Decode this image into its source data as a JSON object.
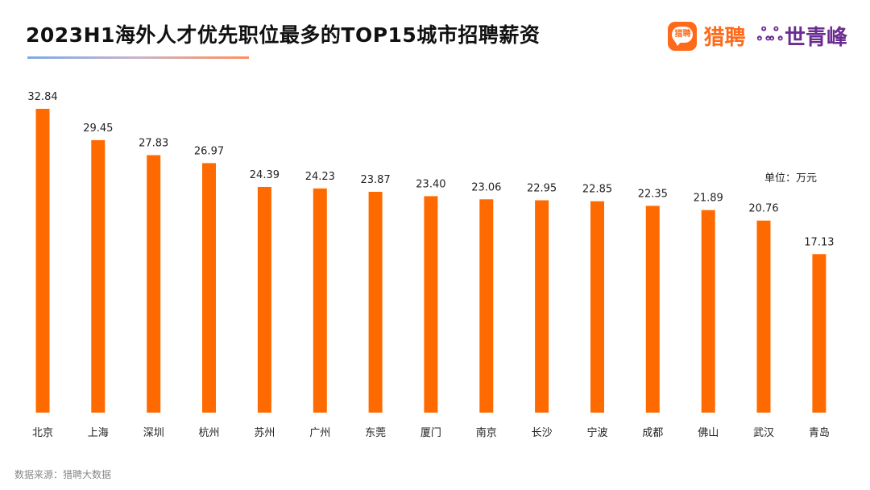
{
  "header": {
    "title": "2023H1海外人才优先职位最多的TOP15城市招聘薪资"
  },
  "logos": {
    "liepin_icon_text": "猎聘",
    "liepin_text": "猎聘",
    "sqf_icon": "sqf-logo-icon",
    "sqf_text": "世青峰"
  },
  "unit_label": "单位：万元",
  "source_label": "数据来源：猎聘大数据",
  "colors": {
    "bar": "#ff6a00",
    "title": "#111111"
  },
  "chart_data": {
    "type": "bar",
    "title": "2023H1海外人才优先职位最多的TOP15城市招聘薪资",
    "categories": [
      "北京",
      "上海",
      "深圳",
      "杭州",
      "苏州",
      "广州",
      "东莞",
      "厦门",
      "南京",
      "长沙",
      "宁波",
      "成都",
      "佛山",
      "武汉",
      "青岛"
    ],
    "values": [
      32.84,
      29.45,
      27.83,
      26.97,
      24.39,
      24.23,
      23.87,
      23.4,
      23.06,
      22.95,
      22.85,
      22.35,
      21.89,
      20.76,
      17.13
    ],
    "value_labels": [
      "32.84",
      "29.45",
      "27.83",
      "26.97",
      "24.39",
      "24.23",
      "23.87",
      "23.40",
      "23.06",
      "22.95",
      "22.85",
      "22.35",
      "21.89",
      "20.76",
      "17.13"
    ],
    "ylabel": "",
    "xlabel": "",
    "ylim": [
      0,
      32.84
    ],
    "grid": false,
    "legend": "none"
  }
}
